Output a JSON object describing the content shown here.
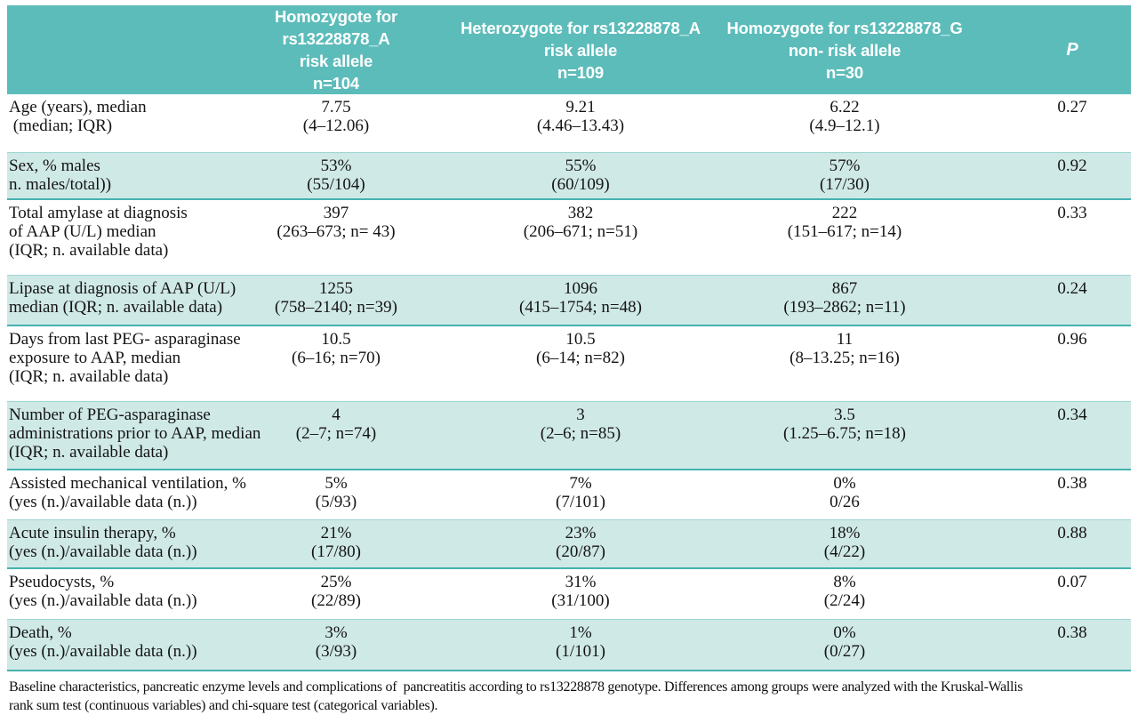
{
  "colors": {
    "header_teal": "#5cbcba",
    "row_shade": "#cfe9e6",
    "rule_teal": "#45b2af",
    "text": "#141414"
  },
  "header": {
    "col_label": "",
    "col_homozygote_a": "Homozygote for rs13228878_A\nrisk allele\nn=104",
    "col_heterozygote_a": "Heterozygote for rs13228878_A\nrisk allele\nn=109",
    "col_homozygote_g": "Homozygote for rs13228878_G\nnon- risk allele\nn=30",
    "col_p": "P"
  },
  "rows": [
    {
      "label": "Age (years), median\n (median; IQR)",
      "v1": "7.75\n(4–12.06)",
      "v2": "9.21\n(4.46–13.43)",
      "v3": "6.22\n(4.9–12.1)",
      "p": "0.27"
    },
    {
      "label": "Sex, % males\nn. males/total))",
      "v1": "53%\n(55/104)",
      "v2": "55%\n(60/109)",
      "v3": "57%\n(17/30)",
      "p": "0.92"
    },
    {
      "label": "Total amylase at diagnosis\nof AAP (U/L) median\n(IQR; n. available data)",
      "v1": "397\n(263–673; n= 43)",
      "v2": "382\n(206–671; n=51)",
      "v3": "222\n(151–617; n=14)",
      "p": "0.33"
    },
    {
      "label": "Lipase at diagnosis of AAP (U/L)\nmedian (IQR; n. available data)",
      "v1": "1255\n(758–2140; n=39)",
      "v2": "1096\n(415–1754; n=48)",
      "v3": "867\n(193–2862; n=11)",
      "p": "0.24"
    },
    {
      "label": "Days from last PEG- asparaginase\nexposure to AAP, median\n(IQR; n. available data)",
      "v1": "10.5\n(6–16; n=70)",
      "v2": "10.5\n(6–14; n=82)",
      "v3": "11\n(8–13.25; n=16)",
      "p": "0.96"
    },
    {
      "label": "Number of PEG-asparaginase\nadministrations prior to AAP, median\n(IQR; n. available data)",
      "v1": "4\n(2–7; n=74)",
      "v2": "3\n(2–6; n=85)",
      "v3": "3.5\n(1.25–6.75; n=18)",
      "p": "0.34"
    },
    {
      "label": "Assisted mechanical ventilation, %\n(yes (n.)/available data (n.))",
      "v1": "5%\n(5/93)",
      "v2": "7%\n(7/101)",
      "v3": "0%\n0/26",
      "p": "0.38"
    },
    {
      "label": "Acute insulin therapy, %\n(yes (n.)/available data (n.))",
      "v1": "21%\n(17/80)",
      "v2": "23%\n(20/87)",
      "v3": "18%\n(4/22)",
      "p": "0.88"
    },
    {
      "label": "Pseudocysts, %\n(yes (n.)/available data (n.))",
      "v1": "25%\n(22/89)",
      "v2": "31%\n(31/100)",
      "v3": "8%\n(2/24)",
      "p": "0.07"
    },
    {
      "label": "Death, %\n(yes (n.)/available data (n.))",
      "v1": "3%\n(3/93)",
      "v2": "1%\n(1/101)",
      "v3": "0%\n(0/27)",
      "p": "0.38"
    }
  ],
  "caption": "Baseline characteristics, pancreatic enzyme levels and complications of  pancreatitis according to rs13228878 genotype. Differences among groups were analyzed with the Kruskal-Wallis\nrank sum test (continuous variables) and chi-square test (categorical variables)."
}
